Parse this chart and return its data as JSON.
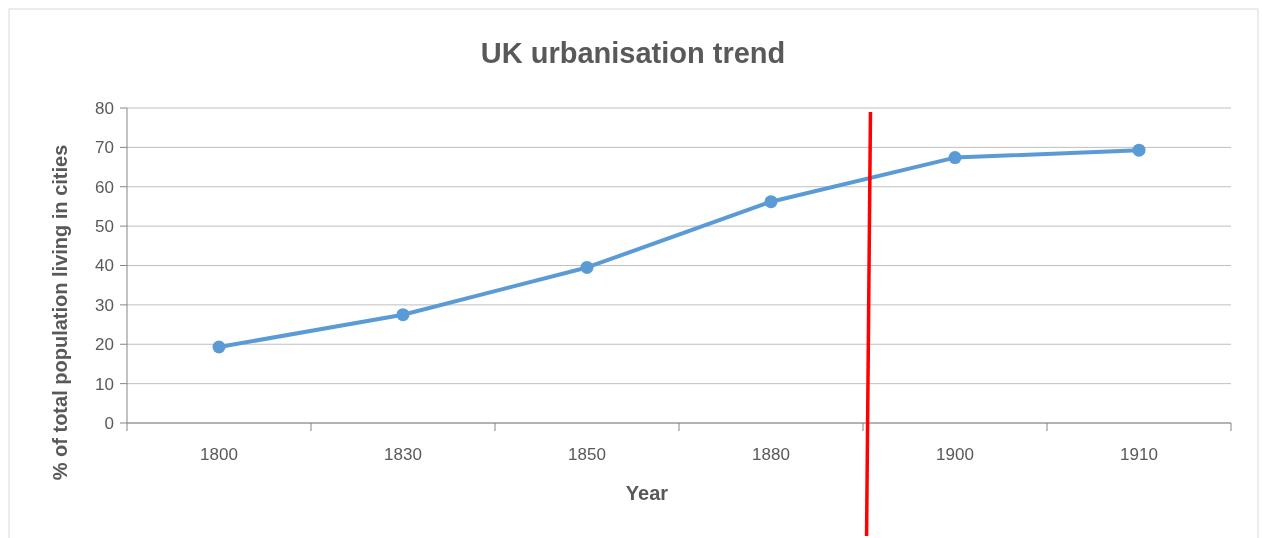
{
  "chart_data": {
    "type": "line",
    "title": "UK urbanisation trend",
    "xlabel": "Year",
    "ylabel": "% of total population living in cities",
    "categories": [
      "1800",
      "1830",
      "1850",
      "1880",
      "1900",
      "1910"
    ],
    "series": [
      {
        "color": "#5b9bd5",
        "values": [
          19.3,
          27.5,
          39.5,
          56.2,
          67.4,
          69.3
        ]
      }
    ],
    "ylim": [
      0,
      80
    ],
    "yticks": [
      0,
      10,
      20,
      30,
      40,
      50,
      60,
      70,
      80
    ],
    "grid": "y",
    "marker": "circle"
  }
}
